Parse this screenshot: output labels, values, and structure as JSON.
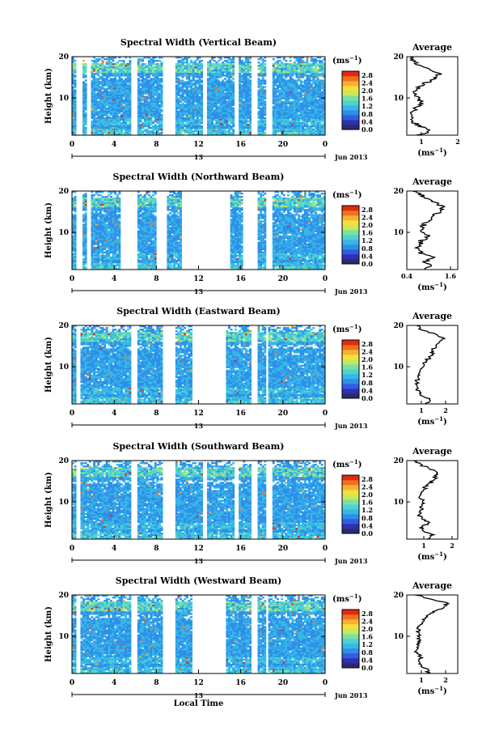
{
  "figure": {
    "xlabel": "Local Time",
    "date_label": "Jun 2013",
    "day_label": "13",
    "units_label": "(ms",
    "units_exp": "−1",
    "units_close": ")",
    "avg_title": "Average",
    "avg_xlabel": "(ms",
    "avg_xlabel_exp": "−1",
    "avg_xlabel_close": ")",
    "ylabel": "Height (km)"
  },
  "chart_data": [
    {
      "type": "heatmap",
      "title": "Spectral Width (Vertical Beam)",
      "xlabel": "",
      "ylabel": "Height (km)",
      "xlim": [
        0,
        24
      ],
      "ylim": [
        1,
        20
      ],
      "x_ticks": [
        "0",
        "4",
        "8",
        "12",
        "16",
        "20",
        "0"
      ],
      "y_ticks": [
        "20",
        "10"
      ],
      "colorbar": {
        "ticks": [
          "2.8",
          "2.4",
          "2.0",
          "1.6",
          "1.2",
          "0.8",
          "0.4",
          "0.0"
        ],
        "range": [
          0,
          3.0
        ]
      },
      "data_gaps_hours": [
        [
          0.4,
          1.0
        ],
        [
          1.5,
          1.8
        ],
        [
          5.6,
          6.2
        ],
        [
          8.7,
          9.8
        ],
        [
          12.4,
          12.8
        ],
        [
          15.4,
          15.7
        ],
        [
          17.0,
          17.6
        ],
        [
          18.3,
          18.9
        ]
      ],
      "average_profile": {
        "xlabel": "(ms−1)",
        "x_ticks": [
          "1",
          "2"
        ],
        "xlim": [
          0.6,
          2.0
        ],
        "heights_km": [
          1,
          2,
          3,
          4,
          5,
          6,
          7,
          8,
          9,
          10,
          11,
          12,
          13,
          14,
          15,
          16,
          17,
          18,
          19,
          20
        ],
        "values": [
          0.9,
          1.3,
          1.0,
          0.8,
          0.7,
          0.75,
          0.8,
          0.9,
          1.0,
          0.9,
          0.8,
          0.85,
          1.0,
          1.2,
          1.4,
          1.5,
          1.2,
          0.9,
          0.8,
          0.75
        ]
      }
    },
    {
      "type": "heatmap",
      "title": "Spectral Width (Northward Beam)",
      "xlabel": "",
      "ylabel": "Height (km)",
      "xlim": [
        0,
        24
      ],
      "ylim": [
        1,
        20
      ],
      "x_ticks": [
        "0",
        "4",
        "8",
        "12",
        "16",
        "20",
        "0"
      ],
      "y_ticks": [
        "20",
        "10"
      ],
      "colorbar": {
        "ticks": [
          "2.8",
          "2.4",
          "2.0",
          "1.6",
          "1.2",
          "0.8",
          "0.4",
          "0.0"
        ],
        "range": [
          0,
          3.0
        ]
      },
      "data_gaps_hours": [
        [
          0.4,
          1.0
        ],
        [
          1.5,
          1.8
        ],
        [
          4.6,
          6.2
        ],
        [
          8.0,
          9.0
        ],
        [
          10.5,
          15.0
        ],
        [
          16.2,
          17.6
        ],
        [
          18.3,
          19.0
        ]
      ],
      "average_profile": {
        "xlabel": "(ms−1)",
        "x_ticks": [
          "0.4",
          "1.6"
        ],
        "xlim": [
          0.4,
          1.8
        ],
        "heights_km": [
          1,
          2,
          3,
          4,
          5,
          6,
          7,
          8,
          9,
          10,
          11,
          12,
          13,
          14,
          15,
          16,
          17,
          18,
          19,
          20
        ],
        "values": [
          0.9,
          1.0,
          0.9,
          1.2,
          0.8,
          0.7,
          0.75,
          0.8,
          1.0,
          0.85,
          0.8,
          0.9,
          1.0,
          1.1,
          1.3,
          1.4,
          1.2,
          1.0,
          0.8,
          0.6
        ]
      }
    },
    {
      "type": "heatmap",
      "title": "Spectral Width (Eastward Beam)",
      "xlabel": "",
      "ylabel": "Height (km)",
      "xlim": [
        0,
        24
      ],
      "ylim": [
        1,
        20
      ],
      "x_ticks": [
        "0",
        "4",
        "8",
        "12",
        "16",
        "20",
        "0"
      ],
      "y_ticks": [
        "20",
        "10"
      ],
      "colorbar": {
        "ticks": [
          "2.8",
          "2.4",
          "2.0",
          "1.6",
          "1.2",
          "0.8",
          "0.4",
          "0.0"
        ],
        "range": [
          0,
          3.0
        ]
      },
      "data_gaps_hours": [
        [
          0.5,
          0.8
        ],
        [
          5.6,
          6.2
        ],
        [
          8.7,
          9.8
        ],
        [
          11.5,
          14.7
        ],
        [
          17.0,
          17.6
        ],
        [
          18.3,
          18.6
        ]
      ],
      "average_profile": {
        "xlabel": "(ms−1)",
        "x_ticks": [
          "1",
          "2"
        ],
        "xlim": [
          0.4,
          2.5
        ],
        "heights_km": [
          1,
          2,
          3,
          4,
          5,
          6,
          7,
          8,
          9,
          10,
          11,
          12,
          13,
          14,
          15,
          16,
          17,
          18,
          19,
          20
        ],
        "values": [
          1.2,
          1.4,
          1.0,
          0.9,
          0.8,
          0.8,
          0.85,
          0.9,
          0.95,
          1.0,
          1.1,
          1.3,
          1.5,
          1.4,
          1.6,
          1.7,
          1.9,
          1.5,
          1.0,
          0.8
        ]
      }
    },
    {
      "type": "heatmap",
      "title": "Spectral Width (Southward Beam)",
      "xlabel": "",
      "ylabel": "Height (km)",
      "xlim": [
        0,
        24
      ],
      "ylim": [
        1,
        20
      ],
      "x_ticks": [
        "0",
        "4",
        "8",
        "12",
        "16",
        "20",
        "0"
      ],
      "y_ticks": [
        "20",
        "10"
      ],
      "colorbar": {
        "ticks": [
          "2.8",
          "2.4",
          "2.0",
          "1.6",
          "1.2",
          "0.8",
          "0.4",
          "0.0"
        ],
        "range": [
          0,
          3.0
        ]
      },
      "data_gaps_hours": [
        [
          0.5,
          0.8
        ],
        [
          5.6,
          6.2
        ],
        [
          8.7,
          9.8
        ],
        [
          12.4,
          12.8
        ],
        [
          15.4,
          15.7
        ],
        [
          17.0,
          17.6
        ],
        [
          18.3,
          18.9
        ]
      ],
      "average_profile": {
        "xlabel": "(ms−1)",
        "x_ticks": [
          "1",
          "2"
        ],
        "xlim": [
          0.4,
          2.2
        ],
        "heights_km": [
          1,
          2,
          3,
          4,
          5,
          6,
          7,
          8,
          9,
          10,
          11,
          12,
          13,
          14,
          15,
          16,
          17,
          18,
          19,
          20
        ],
        "values": [
          1.1,
          1.3,
          1.0,
          0.9,
          1.2,
          0.9,
          0.8,
          0.9,
          0.9,
          1.0,
          0.85,
          0.9,
          1.0,
          1.1,
          1.3,
          1.4,
          1.5,
          1.2,
          0.9,
          0.7
        ]
      }
    },
    {
      "type": "heatmap",
      "title": "Spectral Width (Westward Beam)",
      "xlabel": "Local Time",
      "ylabel": "Height (km)",
      "xlim": [
        0,
        24
      ],
      "ylim": [
        1,
        20
      ],
      "x_ticks": [
        "0",
        "4",
        "8",
        "12",
        "16",
        "20",
        "0"
      ],
      "y_ticks": [
        "20",
        "10"
      ],
      "colorbar": {
        "ticks": [
          "2.8",
          "2.4",
          "2.0",
          "1.6",
          "1.2",
          "0.8",
          "0.4",
          "0.0"
        ],
        "range": [
          0,
          3.0
        ]
      },
      "data_gaps_hours": [
        [
          0.5,
          0.8
        ],
        [
          5.6,
          6.2
        ],
        [
          8.7,
          9.8
        ],
        [
          11.5,
          14.7
        ],
        [
          17.0,
          17.6
        ],
        [
          18.3,
          18.6
        ]
      ],
      "average_profile": {
        "xlabel": "(ms−1)",
        "x_ticks": [
          "1",
          "2"
        ],
        "xlim": [
          0.4,
          2.5
        ],
        "heights_km": [
          1,
          2,
          3,
          4,
          5,
          6,
          7,
          8,
          9,
          10,
          11,
          12,
          13,
          14,
          15,
          16,
          17,
          18,
          19,
          20
        ],
        "values": [
          1.3,
          1.2,
          1.0,
          0.9,
          1.0,
          0.8,
          0.8,
          0.85,
          0.9,
          0.9,
          0.85,
          0.9,
          1.0,
          1.1,
          1.3,
          1.5,
          1.9,
          2.1,
          1.4,
          0.8
        ]
      }
    }
  ],
  "colors": {
    "colormap": [
      "#2b2b6b",
      "#3030b0",
      "#2f5fe0",
      "#2f8fe8",
      "#36b7e8",
      "#4fd2d0",
      "#7de0a0",
      "#c8e860",
      "#f0e040",
      "#f8b030",
      "#f07020",
      "#e02a10"
    ],
    "axis": "#000000",
    "background": "#ffffff"
  }
}
